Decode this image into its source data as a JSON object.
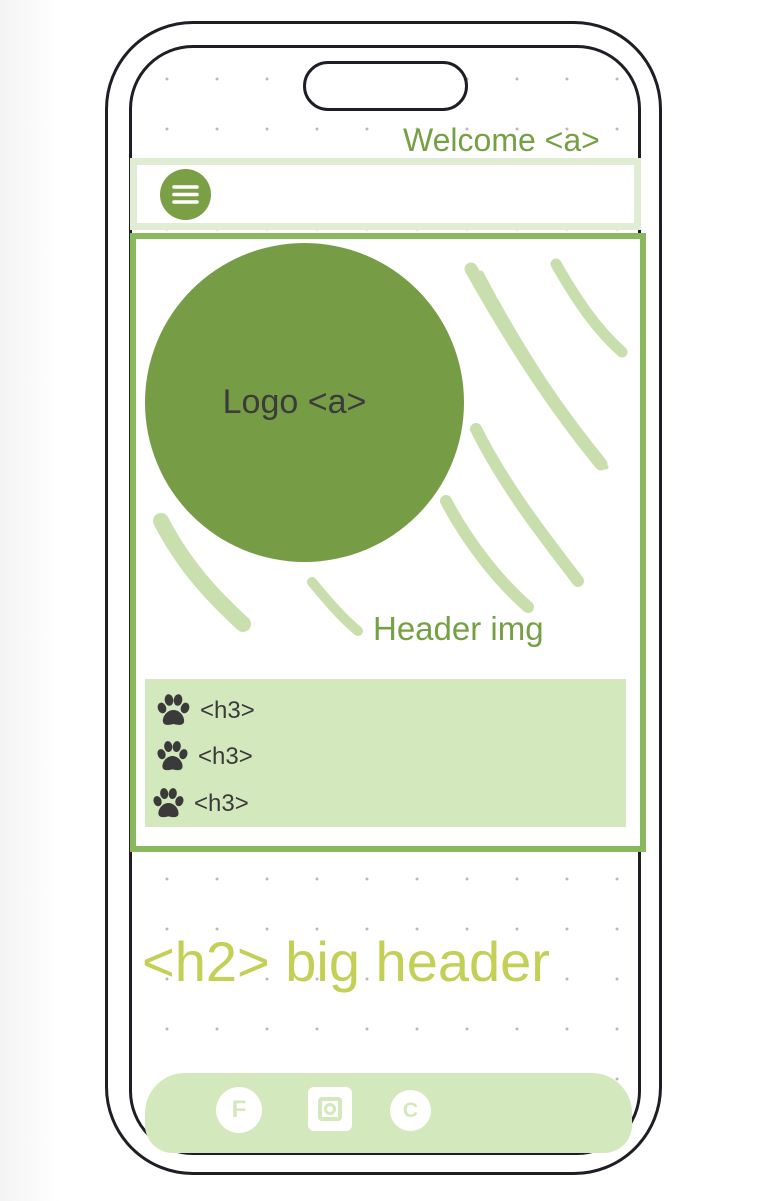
{
  "topbar": {
    "welcome_label": "Welcome <a>"
  },
  "nav": {
    "menu_icon": "hamburger-menu-icon"
  },
  "header": {
    "logo_label": "Logo <a>",
    "image_label": "Header img",
    "h3_items": [
      {
        "icon": "paw-icon",
        "label": "<h3>"
      },
      {
        "icon": "paw-icon",
        "label": "<h3>"
      },
      {
        "icon": "paw-icon",
        "label": "<h3>"
      }
    ]
  },
  "main": {
    "big_header": "<h2> big header"
  },
  "footer": {
    "social": [
      {
        "icon": "facebook-icon",
        "glyph": "F"
      },
      {
        "icon": "instagram-icon",
        "glyph": ""
      },
      {
        "icon": "c-icon",
        "glyph": "C"
      }
    ]
  },
  "colors": {
    "accent_green": "#769d45",
    "header_border": "#8ab85c",
    "panel_green": "#d3e8bd",
    "nav_border": "#e1ecd4",
    "big_header": "#c3cf55",
    "phone_frame": "#1e1e24"
  }
}
